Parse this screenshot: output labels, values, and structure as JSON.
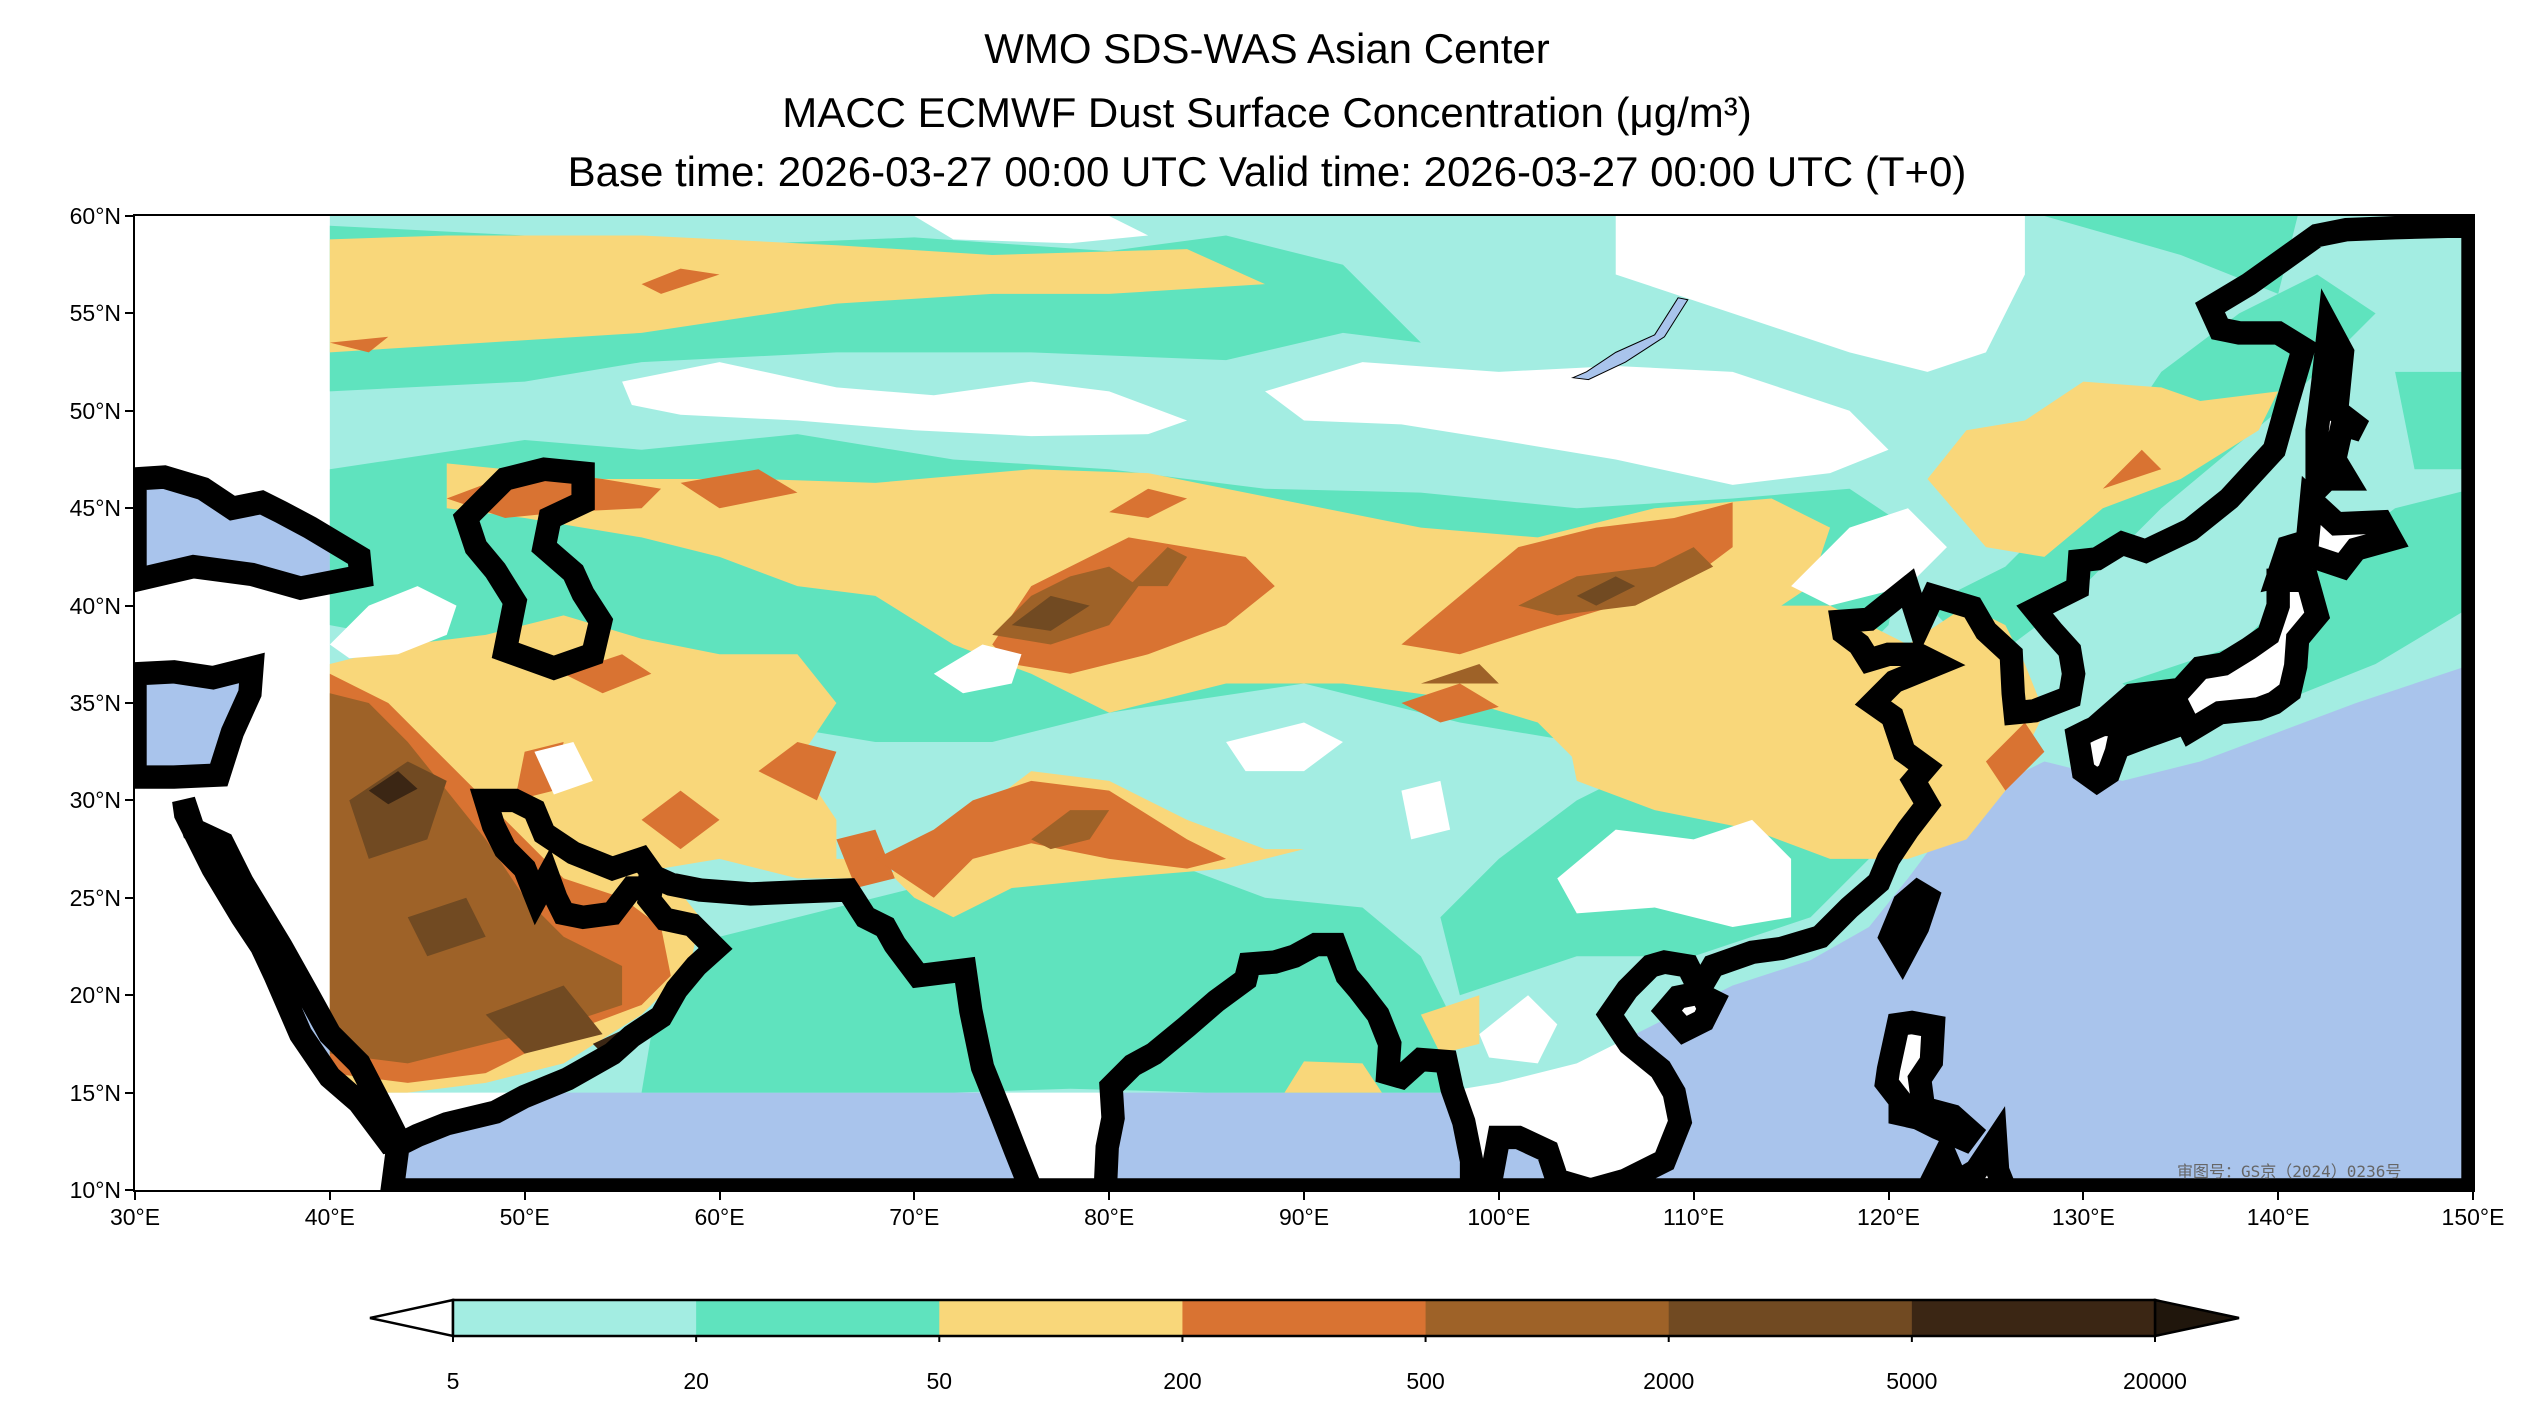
{
  "title": {
    "line1": "WMO SDS-WAS Asian Center",
    "line2": "MACC ECMWF Dust Surface Concentration (μg/m³)",
    "line3": "Base time: 2026-03-27 00:00 UTC Valid time: 2026-03-27 00:00 UTC (T+0)"
  },
  "axes": {
    "lat_labels": [
      "60°N",
      "55°N",
      "50°N",
      "45°N",
      "40°N",
      "35°N",
      "30°N",
      "25°N",
      "20°N",
      "15°N",
      "10°N"
    ],
    "lon_labels": [
      "30°E",
      "40°E",
      "50°E",
      "60°E",
      "70°E",
      "80°E",
      "90°E",
      "100°E",
      "110°E",
      "120°E",
      "130°E",
      "140°E",
      "150°E"
    ],
    "lon_range": [
      30,
      150
    ],
    "lat_range": [
      10,
      60
    ]
  },
  "watermark": "审图号：GS京（2024）0236号",
  "colors": {
    "ocean": "#a9c4ec",
    "land": "#ffffff"
  },
  "colorbar": {
    "levels": [
      "5",
      "20",
      "50",
      "200",
      "500",
      "2000",
      "5000",
      "20000"
    ],
    "colors": [
      "#a3ede2",
      "#5fe3be",
      "#f9d77a",
      "#d97332",
      "#9e6228",
      "#714a22",
      "#3b2614"
    ],
    "under_color": "#ffffff",
    "over_color": "#20160c",
    "unit": "μg/m³"
  }
}
